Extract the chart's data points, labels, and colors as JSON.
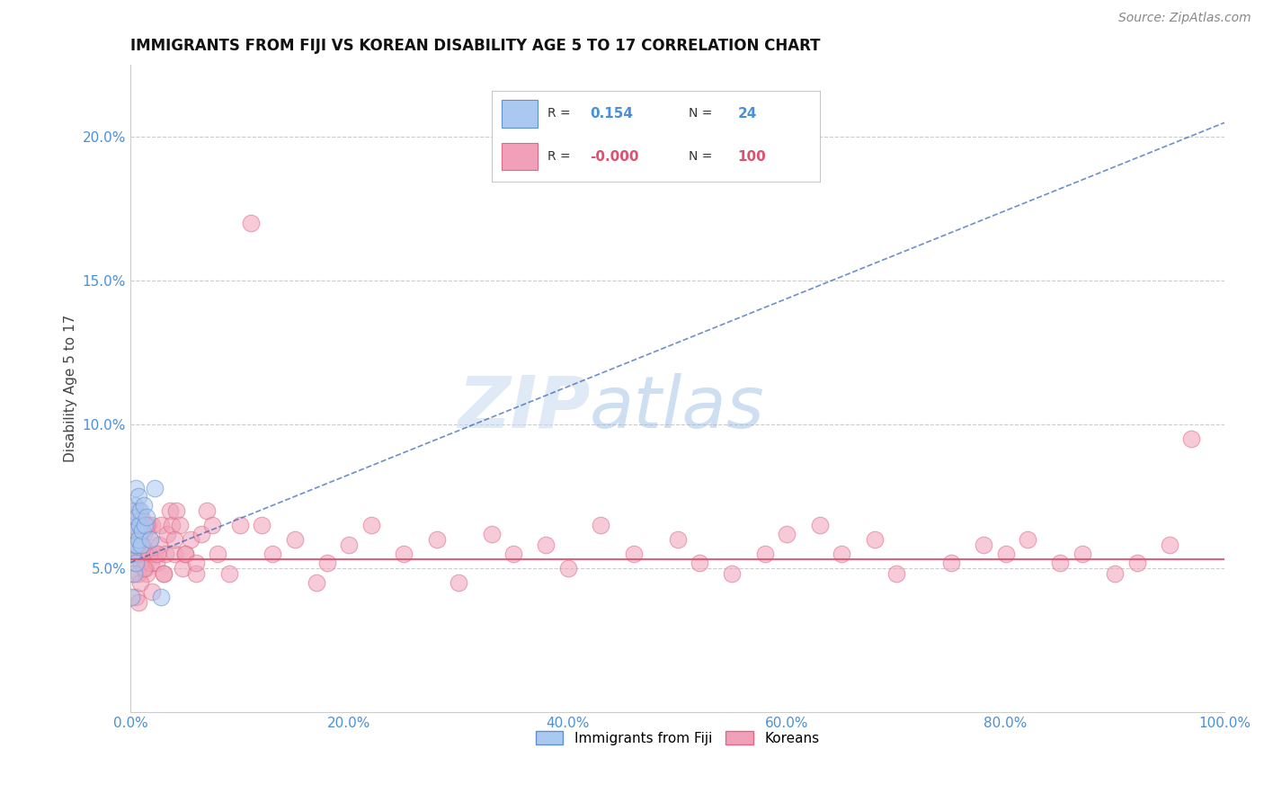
{
  "title": "IMMIGRANTS FROM FIJI VS KOREAN DISABILITY AGE 5 TO 17 CORRELATION CHART",
  "source_text": "Source: ZipAtlas.com",
  "ylabel": "Disability Age 5 to 17",
  "xlim": [
    0.0,
    1.0
  ],
  "ylim": [
    0.0,
    0.225
  ],
  "xticks": [
    0.0,
    0.2,
    0.4,
    0.6,
    0.8,
    1.0
  ],
  "xticklabels": [
    "0.0%",
    "20.0%",
    "40.0%",
    "60.0%",
    "80.0%",
    "100.0%"
  ],
  "yticks": [
    0.05,
    0.1,
    0.15,
    0.2
  ],
  "yticklabels": [
    "5.0%",
    "10.0%",
    "15.0%",
    "20.0%"
  ],
  "fiji_color": "#aac8f0",
  "fiji_edge_color": "#6090d0",
  "korean_color": "#f0a0b8",
  "korean_edge_color": "#e06880",
  "fiji_trend_color": "#3060b0",
  "korean_trend_color": "#e05070",
  "R_fiji": 0.154,
  "N_fiji": 24,
  "R_korean": -0.0,
  "N_korean": 100,
  "fiji_x": [
    0.001,
    0.002,
    0.002,
    0.003,
    0.003,
    0.004,
    0.004,
    0.005,
    0.005,
    0.005,
    0.006,
    0.006,
    0.007,
    0.007,
    0.008,
    0.009,
    0.01,
    0.011,
    0.012,
    0.013,
    0.015,
    0.018,
    0.022,
    0.028
  ],
  "fiji_y": [
    0.04,
    0.055,
    0.065,
    0.048,
    0.07,
    0.058,
    0.072,
    0.052,
    0.063,
    0.078,
    0.058,
    0.068,
    0.06,
    0.075,
    0.065,
    0.07,
    0.058,
    0.063,
    0.072,
    0.065,
    0.068,
    0.06,
    0.078,
    0.04
  ],
  "korean_x": [
    0.001,
    0.001,
    0.002,
    0.002,
    0.003,
    0.003,
    0.004,
    0.004,
    0.005,
    0.005,
    0.006,
    0.006,
    0.007,
    0.007,
    0.008,
    0.008,
    0.009,
    0.009,
    0.01,
    0.01,
    0.011,
    0.012,
    0.013,
    0.014,
    0.015,
    0.016,
    0.017,
    0.018,
    0.019,
    0.02,
    0.022,
    0.024,
    0.026,
    0.028,
    0.03,
    0.032,
    0.034,
    0.036,
    0.038,
    0.04,
    0.042,
    0.045,
    0.048,
    0.05,
    0.055,
    0.06,
    0.065,
    0.07,
    0.075,
    0.08,
    0.09,
    0.1,
    0.11,
    0.12,
    0.13,
    0.15,
    0.17,
    0.18,
    0.2,
    0.22,
    0.25,
    0.28,
    0.3,
    0.33,
    0.35,
    0.38,
    0.4,
    0.43,
    0.46,
    0.5,
    0.52,
    0.55,
    0.58,
    0.6,
    0.63,
    0.65,
    0.68,
    0.7,
    0.75,
    0.78,
    0.8,
    0.82,
    0.85,
    0.87,
    0.9,
    0.92,
    0.95,
    0.97,
    0.005,
    0.007,
    0.008,
    0.009,
    0.012,
    0.015,
    0.02,
    0.025,
    0.03,
    0.04,
    0.05,
    0.06
  ],
  "korean_y": [
    0.055,
    0.062,
    0.048,
    0.065,
    0.055,
    0.07,
    0.052,
    0.058,
    0.065,
    0.06,
    0.055,
    0.065,
    0.048,
    0.07,
    0.055,
    0.062,
    0.058,
    0.065,
    0.052,
    0.068,
    0.058,
    0.062,
    0.055,
    0.05,
    0.048,
    0.065,
    0.055,
    0.06,
    0.052,
    0.065,
    0.055,
    0.052,
    0.058,
    0.065,
    0.048,
    0.055,
    0.062,
    0.07,
    0.065,
    0.055,
    0.07,
    0.065,
    0.05,
    0.055,
    0.06,
    0.048,
    0.062,
    0.07,
    0.065,
    0.055,
    0.048,
    0.065,
    0.17,
    0.065,
    0.055,
    0.06,
    0.045,
    0.052,
    0.058,
    0.065,
    0.055,
    0.06,
    0.045,
    0.062,
    0.055,
    0.058,
    0.05,
    0.065,
    0.055,
    0.06,
    0.052,
    0.048,
    0.055,
    0.062,
    0.065,
    0.055,
    0.06,
    0.048,
    0.052,
    0.058,
    0.055,
    0.06,
    0.052,
    0.055,
    0.048,
    0.052,
    0.058,
    0.095,
    0.04,
    0.038,
    0.062,
    0.045,
    0.05,
    0.065,
    0.042,
    0.055,
    0.048,
    0.06,
    0.055,
    0.052
  ],
  "fiji_trend_x0": 0.0,
  "fiji_trend_y0": 0.052,
  "fiji_trend_x1": 1.0,
  "fiji_trend_y1": 0.205,
  "korean_trend_y": 0.053,
  "watermark_zip": "ZIP",
  "watermark_atlas": "atlas",
  "title_fontsize": 12,
  "axis_label_fontsize": 11,
  "tick_fontsize": 11,
  "legend_fontsize": 11,
  "source_fontsize": 10,
  "marker_size": 180,
  "marker_alpha": 0.55
}
